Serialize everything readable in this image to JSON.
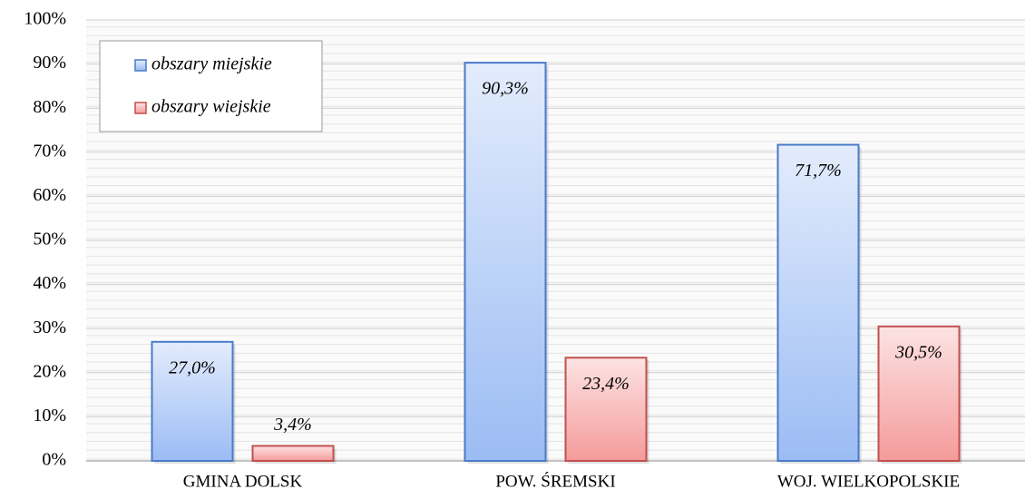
{
  "chart_data": {
    "type": "bar",
    "categories": [
      "GMINA DOLSK",
      "POW. ŚREMSKI",
      "WOJ. WIELKOPOLSKIE"
    ],
    "series": [
      {
        "name": "obszary miejskie",
        "color": "#4a7bc8",
        "values": [
          27.0,
          90.3,
          71.7
        ],
        "value_labels": [
          "27,0%",
          "90,3%",
          "71,7%"
        ]
      },
      {
        "name": "obszary wiejskie",
        "color": "#c0504d",
        "values": [
          3.4,
          23.4,
          30.5
        ],
        "value_labels": [
          "3,4%",
          "23,4%",
          "30,5%"
        ]
      }
    ],
    "ylim": [
      0,
      100
    ],
    "yticks": [
      {
        "value": 0,
        "label": "0%"
      },
      {
        "value": 10,
        "label": "10%"
      },
      {
        "value": 20,
        "label": "20%"
      },
      {
        "value": 30,
        "label": "30%"
      },
      {
        "value": 40,
        "label": "40%"
      },
      {
        "value": 50,
        "label": "50%"
      },
      {
        "value": 60,
        "label": "60%"
      },
      {
        "value": 70,
        "label": "70%"
      },
      {
        "value": 80,
        "label": "80%"
      },
      {
        "value": 90,
        "label": "90%"
      },
      {
        "value": 100,
        "label": "100%"
      }
    ],
    "grid": true,
    "legend": "upper-left"
  }
}
